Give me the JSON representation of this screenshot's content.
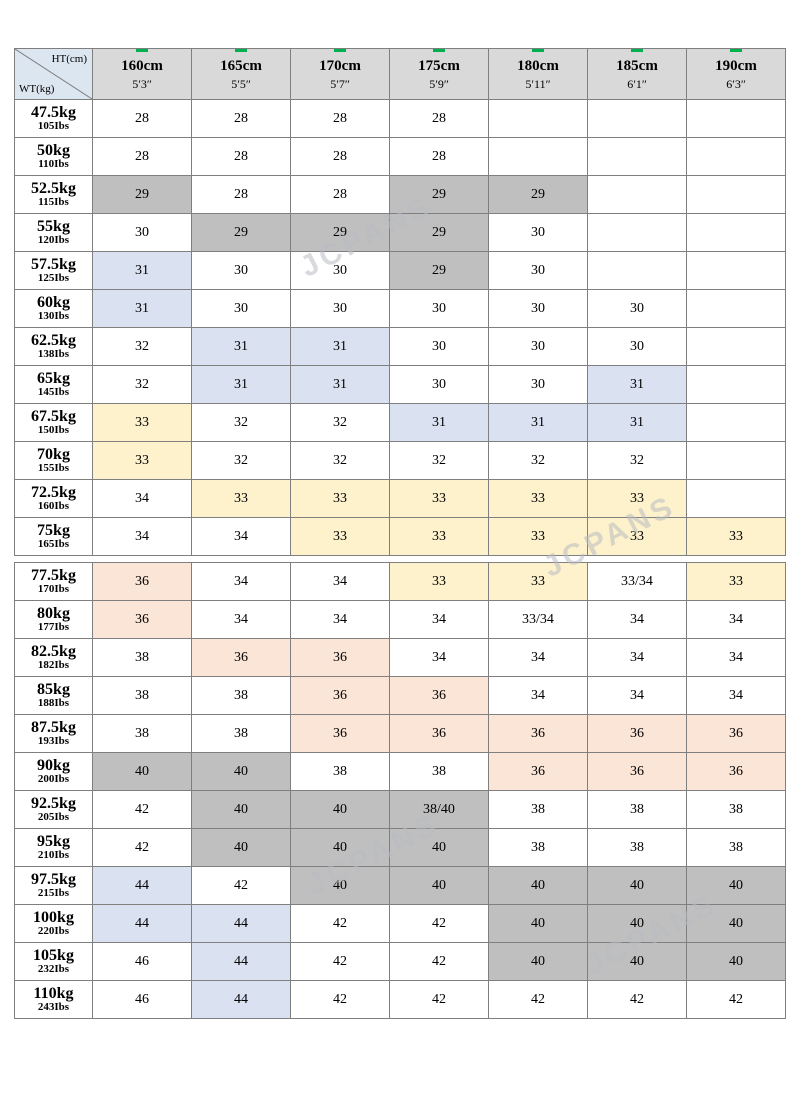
{
  "table": {
    "corner": {
      "ht_label": "HT(cm)",
      "wt_label": "WT(kg)"
    },
    "columns": [
      {
        "cm": "160cm",
        "height": "5′3″"
      },
      {
        "cm": "165cm",
        "height": "5′5″"
      },
      {
        "cm": "170cm",
        "height": "5′7″"
      },
      {
        "cm": "175cm",
        "height": "5′9″"
      },
      {
        "cm": "180cm",
        "height": "5′11″"
      },
      {
        "cm": "185cm",
        "height": "6′1″"
      },
      {
        "cm": "190cm",
        "height": "6′3″"
      }
    ],
    "gap_after_row": 11,
    "rows": [
      {
        "kg": "47.5kg",
        "lbs": "105Ibs",
        "values": [
          "28",
          "28",
          "28",
          "28",
          "",
          "",
          ""
        ],
        "colors": [
          "w",
          "w",
          "w",
          "w",
          "w",
          "w",
          "w"
        ]
      },
      {
        "kg": "50kg",
        "lbs": "110Ibs",
        "values": [
          "28",
          "28",
          "28",
          "28",
          "",
          "",
          ""
        ],
        "colors": [
          "w",
          "w",
          "w",
          "w",
          "w",
          "w",
          "w"
        ]
      },
      {
        "kg": "52.5kg",
        "lbs": "115Ibs",
        "values": [
          "29",
          "28",
          "28",
          "29",
          "29",
          "",
          ""
        ],
        "colors": [
          "g",
          "w",
          "w",
          "g",
          "g",
          "w",
          "w"
        ]
      },
      {
        "kg": "55kg",
        "lbs": "120Ibs",
        "values": [
          "30",
          "29",
          "29",
          "29",
          "30",
          "",
          ""
        ],
        "colors": [
          "w",
          "g",
          "g",
          "g",
          "w",
          "w",
          "w"
        ]
      },
      {
        "kg": "57.5kg",
        "lbs": "125Ibs",
        "values": [
          "31",
          "30",
          "30",
          "29",
          "30",
          "",
          ""
        ],
        "colors": [
          "b",
          "w",
          "w",
          "g",
          "w",
          "w",
          "w"
        ]
      },
      {
        "kg": "60kg",
        "lbs": "130Ibs",
        "values": [
          "31",
          "30",
          "30",
          "30",
          "30",
          "30",
          ""
        ],
        "colors": [
          "b",
          "w",
          "w",
          "w",
          "w",
          "w",
          "w"
        ]
      },
      {
        "kg": "62.5kg",
        "lbs": "138Ibs",
        "values": [
          "32",
          "31",
          "31",
          "30",
          "30",
          "30",
          ""
        ],
        "colors": [
          "w",
          "b",
          "b",
          "w",
          "w",
          "w",
          "w"
        ]
      },
      {
        "kg": "65kg",
        "lbs": "145Ibs",
        "values": [
          "32",
          "31",
          "31",
          "30",
          "30",
          "31",
          ""
        ],
        "colors": [
          "w",
          "b",
          "b",
          "w",
          "w",
          "b",
          "w"
        ]
      },
      {
        "kg": "67.5kg",
        "lbs": "150Ibs",
        "values": [
          "33",
          "32",
          "32",
          "31",
          "31",
          "31",
          ""
        ],
        "colors": [
          "y",
          "w",
          "w",
          "b",
          "b",
          "b",
          "w"
        ]
      },
      {
        "kg": "70kg",
        "lbs": "155Ibs",
        "values": [
          "33",
          "32",
          "32",
          "32",
          "32",
          "32",
          ""
        ],
        "colors": [
          "y",
          "w",
          "w",
          "w",
          "w",
          "w",
          "w"
        ]
      },
      {
        "kg": "72.5kg",
        "lbs": "160Ibs",
        "values": [
          "34",
          "33",
          "33",
          "33",
          "33",
          "33",
          ""
        ],
        "colors": [
          "w",
          "y",
          "y",
          "y",
          "y",
          "y",
          "w"
        ]
      },
      {
        "kg": "75kg",
        "lbs": "165Ibs",
        "values": [
          "34",
          "34",
          "33",
          "33",
          "33",
          "33",
          "33"
        ],
        "colors": [
          "w",
          "w",
          "y",
          "y",
          "y",
          "y",
          "y"
        ]
      },
      {
        "kg": "77.5kg",
        "lbs": "170Ibs",
        "values": [
          "36",
          "34",
          "34",
          "33",
          "33",
          "33/34",
          "33"
        ],
        "colors": [
          "p",
          "w",
          "w",
          "y",
          "y",
          "w",
          "y"
        ]
      },
      {
        "kg": "80kg",
        "lbs": "177Ibs",
        "values": [
          "36",
          "34",
          "34",
          "34",
          "33/34",
          "34",
          "34"
        ],
        "colors": [
          "p",
          "w",
          "w",
          "w",
          "w",
          "w",
          "w"
        ]
      },
      {
        "kg": "82.5kg",
        "lbs": "182Ibs",
        "values": [
          "38",
          "36",
          "36",
          "34",
          "34",
          "34",
          "34"
        ],
        "colors": [
          "w",
          "p",
          "p",
          "w",
          "w",
          "w",
          "w"
        ]
      },
      {
        "kg": "85kg",
        "lbs": "188Ibs",
        "values": [
          "38",
          "38",
          "36",
          "36",
          "34",
          "34",
          "34"
        ],
        "colors": [
          "w",
          "w",
          "p",
          "p",
          "w",
          "w",
          "w"
        ]
      },
      {
        "kg": "87.5kg",
        "lbs": "193Ibs",
        "values": [
          "38",
          "38",
          "36",
          "36",
          "36",
          "36",
          "36"
        ],
        "colors": [
          "w",
          "w",
          "p",
          "p",
          "p",
          "p",
          "p"
        ]
      },
      {
        "kg": "90kg",
        "lbs": "200Ibs",
        "values": [
          "40",
          "40",
          "38",
          "38",
          "36",
          "36",
          "36"
        ],
        "colors": [
          "g",
          "g",
          "w",
          "w",
          "p",
          "p",
          "p"
        ]
      },
      {
        "kg": "92.5kg",
        "lbs": "205Ibs",
        "values": [
          "42",
          "40",
          "40",
          "38/40",
          "38",
          "38",
          "38"
        ],
        "colors": [
          "w",
          "g",
          "g",
          "g",
          "w",
          "w",
          "w"
        ]
      },
      {
        "kg": "95kg",
        "lbs": "210Ibs",
        "values": [
          "42",
          "40",
          "40",
          "40",
          "38",
          "38",
          "38"
        ],
        "colors": [
          "w",
          "g",
          "g",
          "g",
          "w",
          "w",
          "w"
        ]
      },
      {
        "kg": "97.5kg",
        "lbs": "215Ibs",
        "values": [
          "44",
          "42",
          "40",
          "40",
          "40",
          "40",
          "40"
        ],
        "colors": [
          "b",
          "w",
          "g",
          "g",
          "g",
          "g",
          "g"
        ]
      },
      {
        "kg": "100kg",
        "lbs": "220Ibs",
        "values": [
          "44",
          "44",
          "42",
          "42",
          "40",
          "40",
          "40"
        ],
        "colors": [
          "b",
          "b",
          "w",
          "w",
          "g",
          "g",
          "g"
        ]
      },
      {
        "kg": "105kg",
        "lbs": "232Ibs",
        "values": [
          "46",
          "44",
          "42",
          "42",
          "40",
          "40",
          "40"
        ],
        "colors": [
          "w",
          "b",
          "w",
          "w",
          "g",
          "g",
          "g"
        ]
      },
      {
        "kg": "110kg",
        "lbs": "243Ibs",
        "values": [
          "46",
          "44",
          "42",
          "42",
          "42",
          "42",
          "42"
        ],
        "colors": [
          "w",
          "b",
          "w",
          "w",
          "w",
          "w",
          "w"
        ]
      }
    ]
  },
  "watermark": {
    "text": "JCPANS"
  },
  "colors": {
    "white": "#ffffff",
    "gray": "#bfbfbf",
    "blue": "#dae1f1",
    "yellow": "#fdf2cc",
    "pink": "#fbe5d6",
    "header_bg": "#d9d9d9",
    "corner_bg": "#dce6f1",
    "border": "#7f7f7f",
    "tick_green": "#00b050"
  }
}
